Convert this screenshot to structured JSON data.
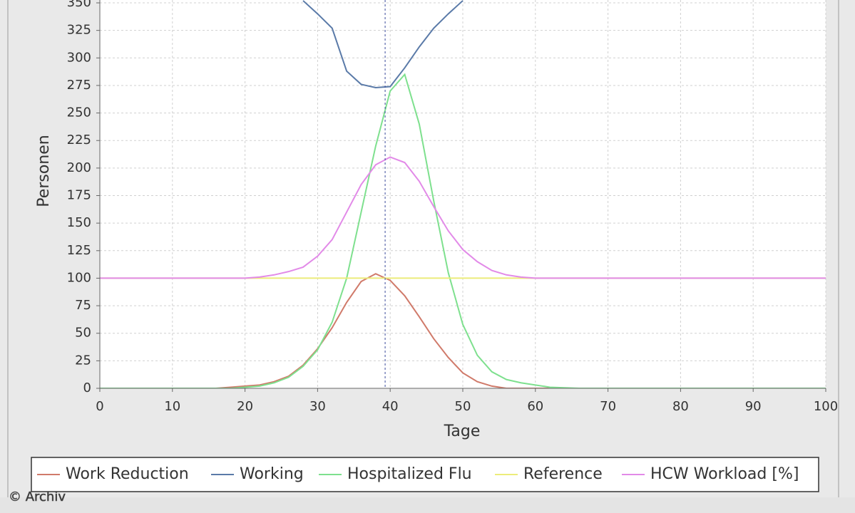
{
  "chart_data": {
    "type": "line",
    "x_label": "Tage",
    "y_label": "Personen",
    "xlim": [
      0,
      100
    ],
    "ylim": [
      0,
      352.6
    ],
    "xticks": [
      0,
      10,
      20,
      30,
      40,
      50,
      60,
      70,
      80,
      90,
      100
    ],
    "yticks": [
      0,
      25,
      50,
      75,
      100,
      125,
      150,
      175,
      200,
      225,
      250,
      275,
      300,
      325,
      350
    ],
    "grid": true,
    "legend": "bottom",
    "crosshair_x": 39.3,
    "x": [
      0,
      10,
      16,
      18,
      20,
      22,
      24,
      26,
      28,
      30,
      32,
      34,
      36,
      38,
      40,
      42,
      44,
      46,
      48,
      50,
      52,
      54,
      56,
      58,
      60,
      62,
      64,
      66,
      70,
      80,
      90,
      100
    ],
    "series": [
      {
        "name": "Work Reduction",
        "color": "#d07a6a",
        "values": [
          0,
          0,
          0,
          1,
          2,
          3,
          6,
          11,
          21,
          36,
          55,
          78,
          97,
          104,
          98,
          84,
          65,
          45,
          28,
          14,
          6,
          2,
          0,
          0,
          0,
          0,
          0,
          0,
          0,
          0,
          0,
          0
        ]
      },
      {
        "name": "Working",
        "color": "#5a7aa8",
        "values": [
          null,
          null,
          null,
          null,
          null,
          null,
          null,
          null,
          352,
          340,
          327,
          288,
          276,
          273,
          274,
          291,
          310,
          327,
          340,
          352,
          null,
          null,
          null,
          null,
          null,
          null,
          null,
          null,
          null,
          null,
          null,
          null
        ]
      },
      {
        "name": "Hospitalized Flu",
        "color": "#7ee08e",
        "values": [
          0,
          0,
          0,
          0,
          1,
          2,
          5,
          10,
          20,
          35,
          60,
          100,
          160,
          220,
          270,
          285,
          240,
          170,
          105,
          58,
          30,
          15,
          8,
          5,
          3,
          1,
          0.5,
          0,
          0,
          0,
          0,
          0
        ]
      },
      {
        "name": "Reference",
        "color": "#ecec7a",
        "values": [
          100,
          100,
          100,
          100,
          100,
          100,
          100,
          100,
          100,
          100,
          100,
          100,
          100,
          100,
          100,
          100,
          100,
          100,
          100,
          100,
          100,
          100,
          100,
          100,
          100,
          100,
          100,
          100,
          100,
          100,
          100,
          100
        ]
      },
      {
        "name": "HCW Workload [%]",
        "color": "#e28ae8",
        "values": [
          100,
          100,
          100,
          100,
          100,
          101,
          103,
          106,
          110,
          120,
          135,
          160,
          185,
          203,
          210,
          205,
          188,
          165,
          143,
          126,
          115,
          107,
          103,
          101,
          100,
          100,
          100,
          100,
          100,
          100,
          100,
          100
        ]
      }
    ],
    "watermark": "© Archiv"
  }
}
